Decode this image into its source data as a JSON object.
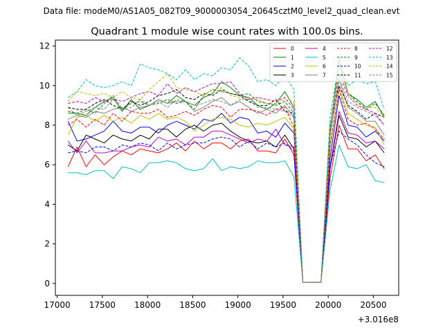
{
  "chart_data": {
    "type": "line",
    "suptitle": "Data file: modeM0/AS1A05_082T09_9000003054_20645cztM0_level2_quad_clean.evt",
    "title": "Quadrant 1 module wise count rates with 100.0s bins.",
    "xlabel": "",
    "ylabel": "",
    "x_offset_label": "+3.016e8",
    "xlim": [
      16980,
      20780
    ],
    "ylim": [
      -0.6,
      12.3
    ],
    "xticks": [
      17000,
      17500,
      18000,
      18500,
      19000,
      19500,
      20000,
      20500
    ],
    "yticks": [
      0,
      2,
      4,
      6,
      8,
      10,
      12
    ],
    "x": [
      17120,
      17220,
      17320,
      17420,
      17520,
      17620,
      17720,
      17820,
      17920,
      18020,
      18120,
      18220,
      18320,
      18420,
      18520,
      18620,
      18720,
      18820,
      18920,
      19020,
      19120,
      19220,
      19320,
      19420,
      19520,
      19620,
      19720,
      19820,
      19920,
      20020,
      20120,
      20220,
      20320,
      20420,
      20520,
      20620
    ],
    "series": [
      {
        "name": "0",
        "color": "#ff0000",
        "dash": "solid",
        "values": [
          5.9,
          6.9,
          5.9,
          6.5,
          6.0,
          6.4,
          6.7,
          6.5,
          6.8,
          6.7,
          6.6,
          6.8,
          7.1,
          6.7,
          7.2,
          6.8,
          7.1,
          7.1,
          6.8,
          7.2,
          7.3,
          6.7,
          6.7,
          6.6,
          7.3,
          6.5,
          0.05,
          0.05,
          0.05,
          5.3,
          8.0,
          6.8,
          6.8,
          6.2,
          6.5,
          5.8
        ]
      },
      {
        "name": "1",
        "color": "#008000",
        "dash": "solid",
        "values": [
          8.6,
          8.6,
          8.5,
          8.9,
          9.2,
          9.4,
          8.7,
          9.3,
          8.8,
          9.0,
          9.3,
          9.1,
          9.5,
          9.2,
          9.0,
          9.4,
          9.6,
          10.2,
          9.9,
          9.5,
          9.4,
          9.0,
          8.8,
          9.1,
          9.7,
          8.9,
          0.05,
          0.05,
          0.05,
          7.8,
          11.2,
          9.6,
          9.3,
          8.9,
          9.2,
          8.4
        ]
      },
      {
        "name": "2",
        "color": "#0000ff",
        "dash": "solid",
        "values": [
          8.2,
          7.2,
          7.3,
          7.5,
          7.7,
          8.2,
          7.7,
          7.6,
          7.9,
          7.9,
          7.6,
          8.0,
          8.2,
          8.0,
          7.8,
          8.3,
          8.2,
          8.6,
          8.1,
          8.4,
          8.3,
          7.6,
          7.7,
          7.4,
          8.1,
          7.6,
          0.05,
          0.05,
          0.05,
          6.3,
          9.5,
          8.0,
          7.9,
          7.4,
          7.7,
          7.2
        ]
      },
      {
        "name": "3",
        "color": "#000000",
        "dash": "solid",
        "values": [
          7.0,
          6.7,
          7.5,
          7.3,
          7.1,
          7.5,
          7.3,
          7.2,
          7.5,
          7.3,
          7.8,
          7.8,
          7.4,
          7.8,
          8.0,
          7.7,
          8.0,
          8.1,
          7.7,
          7.4,
          7.2,
          7.1,
          7.2,
          6.9,
          7.5,
          6.8,
          0.05,
          0.05,
          0.05,
          5.8,
          8.5,
          7.4,
          7.3,
          6.9,
          7.2,
          6.6
        ]
      },
      {
        "name": "4",
        "color": "#c000c0",
        "dash": "solid",
        "values": [
          7.2,
          6.6,
          7.2,
          6.6,
          6.6,
          6.7,
          6.7,
          6.9,
          7.0,
          6.9,
          7.4,
          7.2,
          7.3,
          7.0,
          7.4,
          7.4,
          7.7,
          7.7,
          7.5,
          7.3,
          7.1,
          7.3,
          7.2,
          7.8,
          7.0,
          6.9,
          0.05,
          0.05,
          0.05,
          5.9,
          8.7,
          7.6,
          7.5,
          7.1,
          7.2,
          6.8
        ]
      },
      {
        "name": "5",
        "color": "#00c0c0",
        "dash": "solid",
        "values": [
          5.6,
          5.6,
          5.5,
          5.7,
          5.7,
          5.3,
          5.9,
          5.8,
          5.6,
          6.1,
          6.1,
          6.2,
          6.1,
          5.8,
          5.7,
          5.8,
          6.3,
          5.7,
          5.9,
          5.8,
          5.9,
          6.2,
          6.1,
          6.1,
          6.2,
          5.4,
          0.05,
          0.05,
          0.05,
          4.7,
          7.0,
          5.9,
          5.8,
          6.0,
          5.2,
          5.1
        ]
      },
      {
        "name": "6",
        "color": "#bfbf00",
        "dash": "solid",
        "values": [
          7.5,
          8.4,
          8.5,
          8.2,
          8.5,
          8.2,
          8.4,
          8.1,
          8.5,
          8.3,
          8.6,
          8.3,
          8.4,
          8.2,
          7.7,
          8.0,
          8.3,
          8.4,
          8.3,
          8.0,
          7.9,
          8.1,
          8.0,
          8.2,
          8.4,
          7.8,
          0.05,
          0.05,
          0.05,
          6.8,
          9.9,
          8.6,
          8.3,
          8.0,
          7.9,
          7.0
        ]
      },
      {
        "name": "7",
        "color": "#808080",
        "dash": "solid",
        "values": [
          8.3,
          8.5,
          8.4,
          8.7,
          8.6,
          8.8,
          8.9,
          8.7,
          8.9,
          9.0,
          9.3,
          9.1,
          9.2,
          9.2,
          8.7,
          8.9,
          9.2,
          9.4,
          9.0,
          9.2,
          8.9,
          8.6,
          8.8,
          8.6,
          9.0,
          8.4,
          0.05,
          0.05,
          0.05,
          7.5,
          10.3,
          8.9,
          8.6,
          8.2,
          8.2,
          7.5
        ]
      },
      {
        "name": "8",
        "color": "#ff0000",
        "dash": "dashed",
        "values": [
          8.0,
          8.3,
          7.9,
          8.3,
          8.0,
          8.6,
          8.2,
          8.7,
          8.6,
          8.6,
          8.8,
          8.4,
          8.5,
          8.7,
          8.5,
          8.8,
          9.0,
          8.9,
          8.4,
          8.8,
          8.8,
          8.7,
          8.5,
          8.8,
          8.9,
          7.9,
          0.05,
          0.05,
          0.05,
          7.0,
          9.8,
          8.3,
          8.0,
          8.1,
          7.8,
          7.3
        ]
      },
      {
        "name": "9",
        "color": "#008000",
        "dash": "dashed",
        "values": [
          8.7,
          8.6,
          8.8,
          8.6,
          9.1,
          9.5,
          8.8,
          9.1,
          9.2,
          9.0,
          9.1,
          9.3,
          9.1,
          9.2,
          8.8,
          9.5,
          9.8,
          9.7,
          9.6,
          9.5,
          9.6,
          9.2,
          9.1,
          9.0,
          9.2,
          8.6,
          0.05,
          0.05,
          0.05,
          7.6,
          11.4,
          9.6,
          9.2,
          8.8,
          9.1,
          8.5
        ]
      },
      {
        "name": "10",
        "color": "#0000ff",
        "dash": "dashed",
        "values": [
          6.6,
          6.7,
          6.6,
          6.9,
          6.9,
          6.7,
          7.0,
          6.9,
          7.1,
          7.0,
          6.7,
          7.1,
          6.8,
          7.0,
          7.1,
          7.1,
          7.3,
          7.4,
          7.3,
          6.9,
          7.2,
          6.8,
          7.1,
          6.9,
          7.1,
          6.7,
          0.05,
          0.05,
          0.05,
          5.9,
          7.7,
          7.3,
          7.0,
          6.5,
          6.1,
          5.9
        ]
      },
      {
        "name": "11",
        "color": "#000000",
        "dash": "dashed",
        "values": [
          8.9,
          8.8,
          8.8,
          9.1,
          9.3,
          9.0,
          8.8,
          9.2,
          9.0,
          9.2,
          9.5,
          9.6,
          9.8,
          9.4,
          9.3,
          9.6,
          9.5,
          9.8,
          9.6,
          9.5,
          9.2,
          9.0,
          9.0,
          9.3,
          8.7,
          8.6,
          0.05,
          0.05,
          0.05,
          8.0,
          10.0,
          9.0,
          8.7,
          8.3,
          8.6,
          8.4
        ]
      },
      {
        "name": "12",
        "color": "#c000c0",
        "dash": "dashed",
        "values": [
          9.1,
          9.2,
          9.1,
          9.4,
          9.2,
          9.3,
          9.2,
          9.4,
          9.6,
          9.7,
          9.5,
          10.1,
          9.6,
          9.9,
          9.7,
          9.9,
          10.1,
          10.1,
          10.2,
          9.6,
          9.3,
          9.4,
          9.3,
          9.2,
          9.4,
          8.8,
          0.05,
          0.05,
          0.05,
          7.9,
          10.6,
          9.5,
          9.0,
          8.8,
          8.6,
          8.0
        ]
      },
      {
        "name": "13",
        "color": "#00c0c0",
        "dash": "dashed",
        "values": [
          9.4,
          9.7,
          10.3,
          10.0,
          9.9,
          10.0,
          10.2,
          10.0,
          11.1,
          10.9,
          10.8,
          10.6,
          10.3,
          10.8,
          10.3,
          10.6,
          10.5,
          10.9,
          10.8,
          11.4,
          11.0,
          10.2,
          10.3,
          10.0,
          10.5,
          9.8,
          0.05,
          0.05,
          0.05,
          8.4,
          11.2,
          10.0,
          10.3,
          10.1,
          10.2,
          8.8
        ]
      },
      {
        "name": "14",
        "color": "#bfbf00",
        "dash": "dashed",
        "values": [
          9.2,
          9.7,
          9.6,
          9.5,
          9.6,
          9.4,
          9.7,
          9.4,
          9.3,
          9.8,
          10.2,
          10.6,
          9.9,
          9.8,
          9.7,
          9.5,
          9.8,
          9.9,
          9.5,
          9.4,
          9.3,
          9.3,
          9.1,
          9.1,
          9.3,
          9.2,
          0.05,
          0.05,
          0.05,
          7.8,
          11.0,
          9.6,
          9.1,
          8.9,
          8.9,
          8.4
        ]
      },
      {
        "name": "15",
        "color": "#808080",
        "dash": "dashed",
        "values": [
          8.9,
          8.5,
          8.7,
          8.9,
          8.8,
          9.3,
          8.8,
          8.9,
          9.3,
          9.0,
          9.2,
          8.9,
          9.3,
          9.2,
          9.0,
          9.1,
          9.3,
          9.2,
          9.0,
          9.3,
          9.3,
          8.9,
          8.9,
          8.8,
          8.7,
          8.4,
          0.05,
          0.05,
          0.05,
          7.4,
          10.4,
          9.2,
          8.9,
          8.7,
          8.5,
          8.0
        ]
      }
    ],
    "legend": {
      "placement": "top-right",
      "ncol": 4
    }
  }
}
